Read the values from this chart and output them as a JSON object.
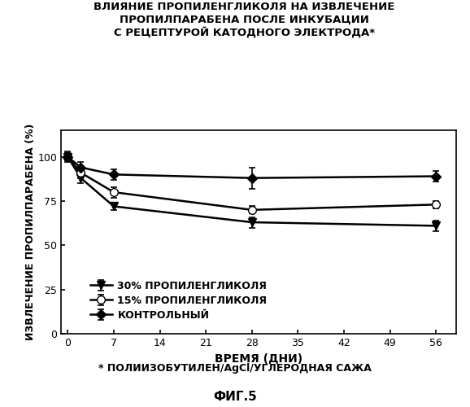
{
  "title_line1": "ВЛИЯНИЕ ПРОПИЛЕНГЛИКОЛЯ НА ИЗВЛЕЧЕНИЕ",
  "title_line2": "ПРОПИЛПАРАБЕНА ПОСЛЕ ИНКУБАЦИИ",
  "title_line3": "С РЕЦЕПТУРОЙ КАТОДНОГО ЭЛЕКТРОДА*",
  "xlabel": "ВРЕМЯ (ДНИ)",
  "ylabel": "ИЗВЛЕЧЕНИЕ ПРОПИЛПАРАБЕНА (%)",
  "footnote": "* ПОЛИИЗОБУТИЛЕН/AgCl/УГЛЕРОДНАЯ САЖА",
  "fig_label": "ФИГ.5",
  "x_ticks": [
    0,
    7,
    14,
    21,
    28,
    35,
    42,
    49,
    56
  ],
  "series": [
    {
      "label": "30% ПРОПИЛЕНГЛИКОЛЯ",
      "x": [
        0,
        2,
        7,
        28,
        56
      ],
      "y": [
        100,
        88,
        72,
        63,
        61
      ],
      "yerr": [
        2,
        3,
        2,
        3,
        3
      ],
      "marker": "v",
      "color": "#000000",
      "linewidth": 1.8,
      "markersize": 7,
      "markerfacecolor": "#000000"
    },
    {
      "label": "15% ПРОПИЛЕНГЛИКОЛЯ",
      "x": [
        0,
        2,
        7,
        28,
        56
      ],
      "y": [
        100,
        91,
        80,
        70,
        73
      ],
      "yerr": [
        2,
        3,
        3,
        2,
        2
      ],
      "marker": "o",
      "color": "#000000",
      "linewidth": 1.8,
      "markersize": 7,
      "markerfacecolor": "white"
    },
    {
      "label": "КОНТРОЛЬНЫЙ",
      "x": [
        0,
        2,
        7,
        28,
        56
      ],
      "y": [
        100,
        94,
        90,
        88,
        89
      ],
      "yerr": [
        3,
        3,
        3,
        6,
        3
      ],
      "marker": "D",
      "color": "#000000",
      "linewidth": 1.8,
      "markersize": 6,
      "markerfacecolor": "#000000"
    }
  ],
  "xlim": [
    -1,
    59
  ],
  "ylim": [
    0,
    115
  ],
  "yticks": [
    0,
    25,
    50,
    75,
    100
  ],
  "background_color": "#ffffff"
}
